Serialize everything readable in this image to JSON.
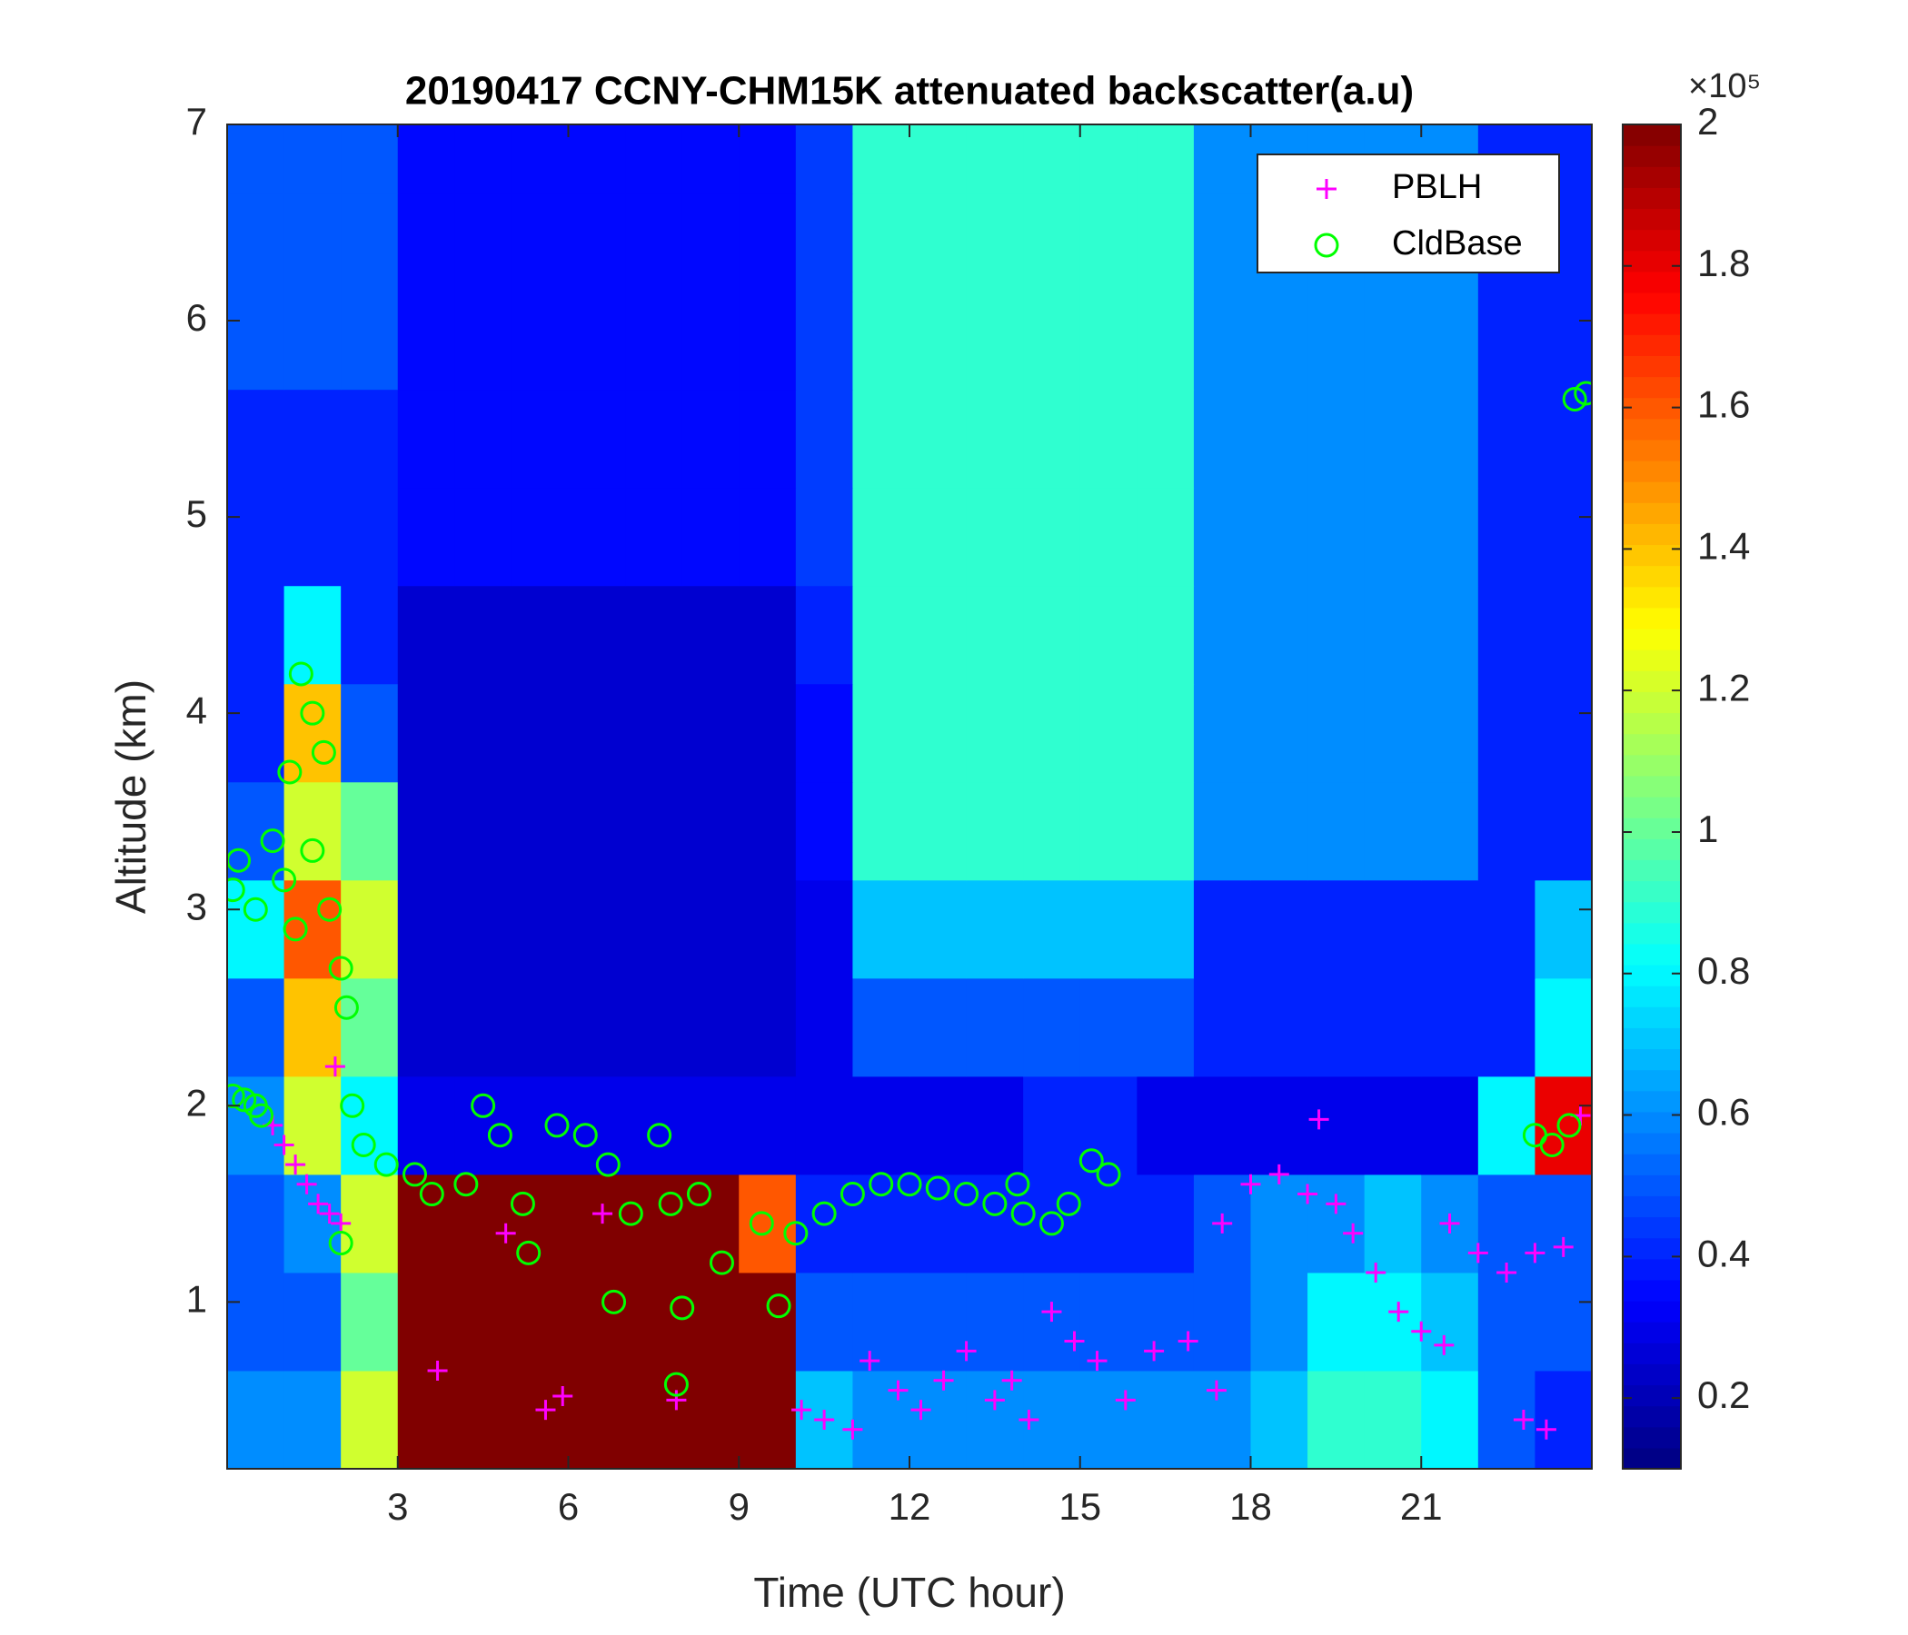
{
  "chart_data": {
    "type": "heatmap",
    "title": "20190417 CCNY-CHM15K attenuated backscatter(a.u)",
    "x_label": "Time (UTC hour)",
    "y_label": "Altitude (km)",
    "xlim": [
      0,
      24
    ],
    "ylim": [
      0.15,
      7
    ],
    "xticks": [
      3,
      6,
      9,
      12,
      15,
      18,
      21
    ],
    "yticks": [
      1,
      2,
      3,
      4,
      5,
      6,
      7
    ],
    "colormap": "jet",
    "clim": [
      0.1,
      2
    ],
    "cticks": [
      0.2,
      0.4,
      0.6,
      0.8,
      1,
      1.2,
      1.4,
      1.6,
      1.8,
      2
    ],
    "colorbar_exponent": "×10⁵",
    "x": [
      0.5,
      1.5,
      2.5,
      3.5,
      4.5,
      5.5,
      6.5,
      7.5,
      8.5,
      9.5,
      10.5,
      11.5,
      12.5,
      13.5,
      14.5,
      15.5,
      16.5,
      17.5,
      18.5,
      19.5,
      20.5,
      21.5,
      22.5,
      23.5
    ],
    "y": [
      0.4,
      0.9,
      1.4,
      1.9,
      2.4,
      2.9,
      3.4,
      3.9,
      4.4,
      4.9,
      5.4,
      5.9,
      6.4,
      6.9
    ],
    "z": [
      [
        0.6,
        0.6,
        1.2,
        2,
        2,
        2,
        2,
        2,
        2,
        2,
        0.7,
        0.6,
        0.6,
        0.6,
        0.6,
        0.6,
        0.6,
        0.6,
        0.7,
        0.9,
        0.9,
        0.8,
        0.5,
        0.4
      ],
      [
        0.5,
        0.5,
        1.0,
        2,
        2,
        2,
        2,
        2,
        2,
        2,
        0.5,
        0.5,
        0.5,
        0.5,
        0.5,
        0.5,
        0.5,
        0.5,
        0.6,
        0.8,
        0.8,
        0.7,
        0.5,
        0.5
      ],
      [
        0.5,
        0.6,
        1.2,
        2,
        2,
        2,
        2,
        2,
        2,
        1.6,
        0.4,
        0.4,
        0.4,
        0.4,
        0.4,
        0.4,
        0.4,
        0.5,
        0.6,
        0.6,
        0.7,
        0.6,
        0.5,
        0.5
      ],
      [
        0.6,
        1.2,
        0.8,
        0.3,
        0.3,
        0.3,
        0.3,
        0.3,
        0.3,
        0.3,
        0.3,
        0.3,
        0.3,
        0.3,
        0.4,
        0.4,
        0.3,
        0.3,
        0.3,
        0.3,
        0.3,
        0.3,
        0.8,
        1.8
      ],
      [
        0.5,
        1.4,
        1.0,
        0.25,
        0.25,
        0.25,
        0.25,
        0.25,
        0.25,
        0.25,
        0.3,
        0.5,
        0.5,
        0.5,
        0.5,
        0.5,
        0.5,
        0.4,
        0.4,
        0.4,
        0.4,
        0.4,
        0.4,
        0.8
      ],
      [
        0.8,
        1.6,
        1.2,
        0.25,
        0.25,
        0.25,
        0.25,
        0.25,
        0.25,
        0.25,
        0.3,
        0.7,
        0.7,
        0.7,
        0.7,
        0.7,
        0.7,
        0.4,
        0.4,
        0.4,
        0.4,
        0.4,
        0.4,
        0.7
      ],
      [
        0.5,
        1.2,
        1.0,
        0.25,
        0.25,
        0.25,
        0.25,
        0.25,
        0.25,
        0.25,
        0.35,
        0.9,
        0.9,
        0.9,
        0.9,
        0.9,
        0.9,
        0.6,
        0.6,
        0.6,
        0.6,
        0.6,
        0.4,
        0.4
      ],
      [
        0.4,
        1.4,
        0.5,
        0.25,
        0.25,
        0.25,
        0.25,
        0.25,
        0.25,
        0.25,
        0.35,
        0.9,
        0.9,
        0.9,
        0.9,
        0.9,
        0.9,
        0.6,
        0.6,
        0.6,
        0.6,
        0.6,
        0.4,
        0.4
      ],
      [
        0.4,
        0.8,
        0.4,
        0.25,
        0.25,
        0.25,
        0.25,
        0.25,
        0.25,
        0.25,
        0.4,
        0.9,
        0.9,
        0.9,
        0.9,
        0.9,
        0.9,
        0.6,
        0.6,
        0.6,
        0.6,
        0.6,
        0.4,
        0.4
      ],
      [
        0.4,
        0.4,
        0.4,
        0.35,
        0.35,
        0.35,
        0.35,
        0.35,
        0.35,
        0.35,
        0.45,
        0.9,
        0.9,
        0.9,
        0.9,
        0.9,
        0.9,
        0.6,
        0.6,
        0.6,
        0.6,
        0.6,
        0.4,
        0.4
      ],
      [
        0.4,
        0.4,
        0.4,
        0.35,
        0.35,
        0.35,
        0.35,
        0.35,
        0.35,
        0.35,
        0.45,
        0.9,
        0.9,
        0.9,
        0.9,
        0.9,
        0.9,
        0.6,
        0.6,
        0.6,
        0.6,
        0.6,
        0.4,
        0.4
      ],
      [
        0.5,
        0.5,
        0.5,
        0.35,
        0.35,
        0.35,
        0.35,
        0.35,
        0.35,
        0.35,
        0.45,
        0.9,
        0.9,
        0.9,
        0.9,
        0.9,
        0.9,
        0.6,
        0.6,
        0.6,
        0.6,
        0.6,
        0.4,
        0.4
      ],
      [
        0.5,
        0.5,
        0.5,
        0.35,
        0.35,
        0.35,
        0.35,
        0.35,
        0.35,
        0.35,
        0.45,
        0.9,
        0.9,
        0.9,
        0.9,
        0.9,
        0.9,
        0.6,
        0.6,
        0.6,
        0.6,
        0.6,
        0.4,
        0.4
      ],
      [
        0.5,
        0.5,
        0.5,
        0.35,
        0.35,
        0.35,
        0.35,
        0.35,
        0.35,
        0.35,
        0.45,
        0.9,
        0.9,
        0.9,
        0.9,
        0.9,
        0.9,
        0.6,
        0.6,
        0.6,
        0.6,
        0.6,
        0.4,
        0.4
      ]
    ],
    "series": [
      {
        "name": "PBLH",
        "color": "#ff00ff",
        "marker": "+",
        "x": [
          0.8,
          1.0,
          1.2,
          1.4,
          1.6,
          1.8,
          2.0,
          1.9,
          3.7,
          4.9,
          5.6,
          5.9,
          6.6,
          7.9,
          10.1,
          10.5,
          11.0,
          11.3,
          11.8,
          12.2,
          12.6,
          13.0,
          13.5,
          13.8,
          14.1,
          14.5,
          14.9,
          15.3,
          15.8,
          16.3,
          16.9,
          17.4,
          17.5,
          18.0,
          18.5,
          19.0,
          19.2,
          19.5,
          19.8,
          20.2,
          20.6,
          21.0,
          21.4,
          21.5,
          22.0,
          22.5,
          23.0,
          23.5,
          23.8,
          22.8,
          23.2
        ],
        "values": [
          1.9,
          1.8,
          1.7,
          1.6,
          1.5,
          1.45,
          1.4,
          2.2,
          0.65,
          1.35,
          0.45,
          0.52,
          1.45,
          0.5,
          0.45,
          0.4,
          0.35,
          0.7,
          0.55,
          0.45,
          0.6,
          0.75,
          0.5,
          0.6,
          0.4,
          0.95,
          0.8,
          0.7,
          0.5,
          0.75,
          0.8,
          0.55,
          1.4,
          1.6,
          1.65,
          1.55,
          1.93,
          1.5,
          1.35,
          1.15,
          0.95,
          0.85,
          0.78,
          1.4,
          1.25,
          1.15,
          1.25,
          1.28,
          1.95,
          0.4,
          0.35
        ]
      },
      {
        "name": "CldBase",
        "color": "#00ff00",
        "marker": "o",
        "x": [
          0.1,
          0.3,
          0.5,
          0.6,
          0.1,
          0.2,
          0.5,
          0.8,
          1.0,
          1.2,
          1.1,
          1.3,
          1.5,
          1.7,
          1.5,
          1.8,
          2.0,
          2.1,
          2.2,
          2.0,
          2.4,
          2.8,
          3.3,
          3.6,
          4.2,
          4.5,
          4.8,
          5.2,
          5.3,
          5.8,
          6.3,
          6.7,
          6.8,
          7.1,
          7.6,
          7.8,
          8.0,
          8.3,
          8.7,
          7.9,
          9.4,
          9.7,
          10.0,
          10.5,
          11.0,
          11.5,
          12.0,
          12.5,
          13.0,
          13.5,
          13.9,
          14.0,
          14.5,
          14.8,
          15.2,
          15.5,
          23.0,
          23.3,
          23.6,
          23.7,
          23.9
        ],
        "values": [
          2.05,
          2.03,
          2.0,
          1.95,
          3.1,
          3.25,
          3.0,
          3.35,
          3.15,
          2.9,
          3.7,
          4.2,
          4.0,
          3.8,
          3.3,
          3.0,
          2.7,
          2.5,
          2.0,
          1.3,
          1.8,
          1.7,
          1.65,
          1.55,
          1.6,
          2.0,
          1.85,
          1.5,
          1.25,
          1.9,
          1.85,
          1.7,
          1.0,
          1.45,
          1.85,
          1.5,
          0.97,
          1.55,
          1.2,
          0.58,
          1.4,
          0.98,
          1.35,
          1.45,
          1.55,
          1.6,
          1.6,
          1.58,
          1.55,
          1.5,
          1.6,
          1.45,
          1.4,
          1.5,
          1.72,
          1.65,
          1.85,
          1.8,
          1.9,
          5.6,
          5.63
        ]
      }
    ]
  }
}
